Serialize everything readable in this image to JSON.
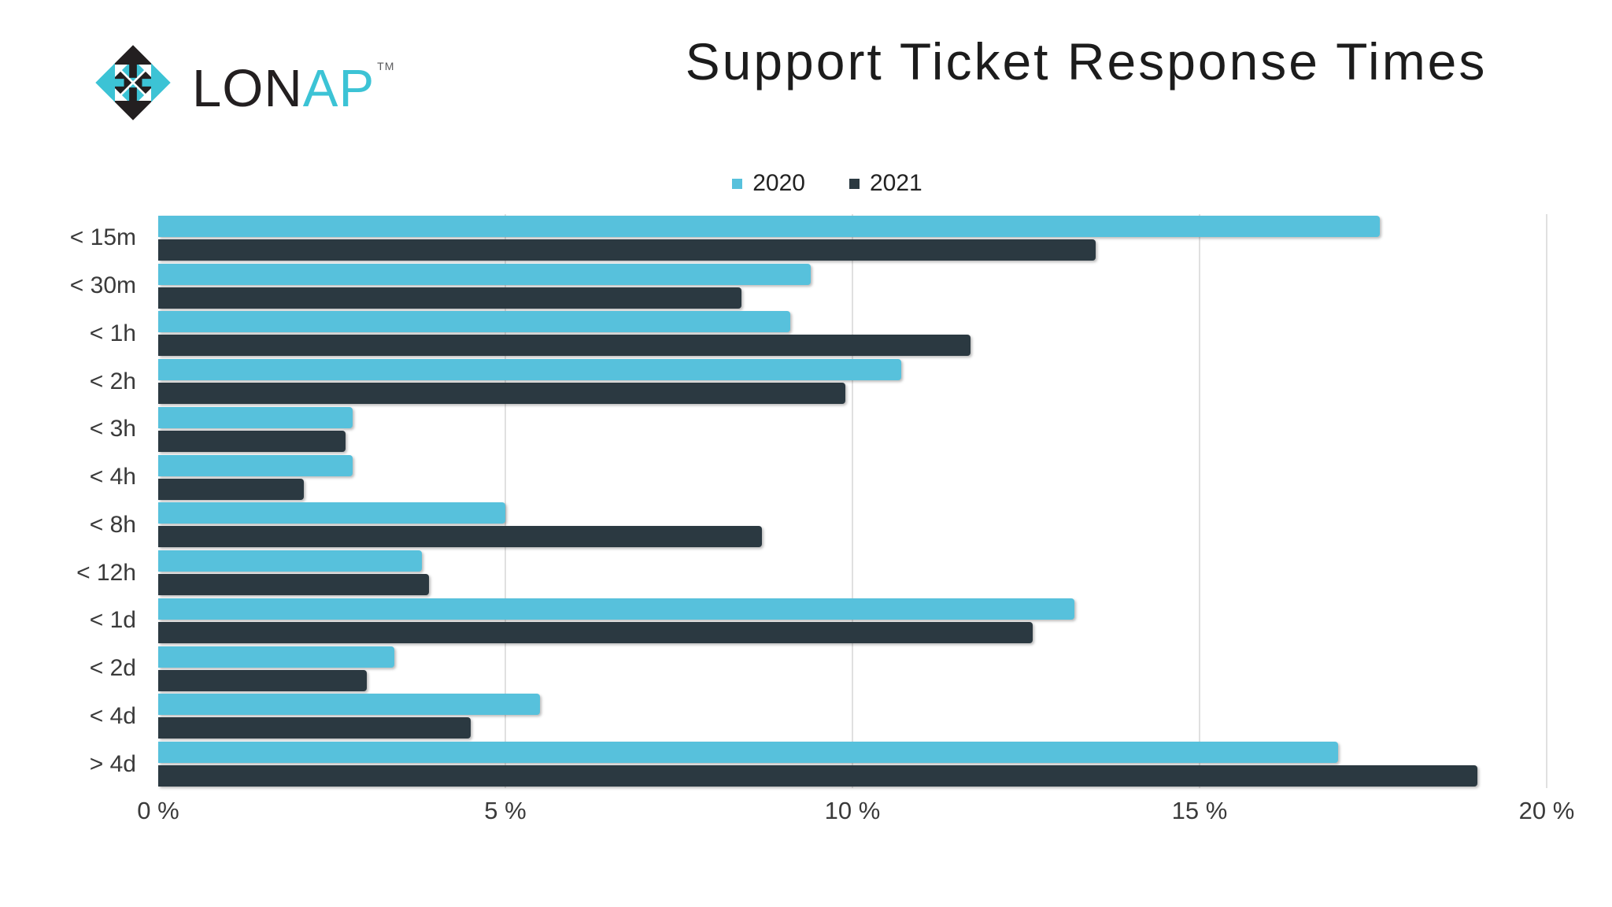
{
  "brand": {
    "prefix": "LON",
    "suffix": "AP",
    "trademark": "TM"
  },
  "colors": {
    "bar_2020": "#57c1dc",
    "bar_2021": "#2b3941",
    "logo_cyan": "#3cc3d5",
    "logo_black": "#231f20",
    "gridline": "#e0e0e0",
    "title_text": "#1c1c1c",
    "axis_text": "#3a3a3a"
  },
  "chart_data": {
    "type": "bar",
    "orientation": "horizontal",
    "title": "Support Ticket Response Times",
    "categories": [
      "< 15m",
      "< 30m",
      "< 1h",
      "< 2h",
      "< 3h",
      "< 4h",
      "< 8h",
      "< 12h",
      "< 1d",
      "< 2d",
      "< 4d",
      "> 4d"
    ],
    "series": [
      {
        "name": "2020",
        "color": "#57c1dc",
        "values": [
          17.6,
          9.4,
          9.1,
          10.7,
          2.8,
          2.8,
          5.0,
          3.8,
          13.2,
          3.4,
          5.5,
          17.0
        ]
      },
      {
        "name": "2021",
        "color": "#2b3941",
        "values": [
          13.5,
          8.4,
          11.7,
          9.9,
          2.7,
          2.1,
          8.7,
          3.9,
          12.6,
          3.0,
          4.5,
          19.0
        ]
      }
    ],
    "xlabel": "",
    "ylabel": "",
    "xlim": [
      0,
      20
    ],
    "x_ticks": [
      {
        "value": 0,
        "label": "0 %"
      },
      {
        "value": 5,
        "label": "5 %"
      },
      {
        "value": 10,
        "label": "10 %"
      },
      {
        "value": 15,
        "label": "15 %"
      },
      {
        "value": 20,
        "label": "20 %"
      }
    ],
    "grid": "vertical-only",
    "legend_position": "top-center",
    "unit": "%"
  }
}
